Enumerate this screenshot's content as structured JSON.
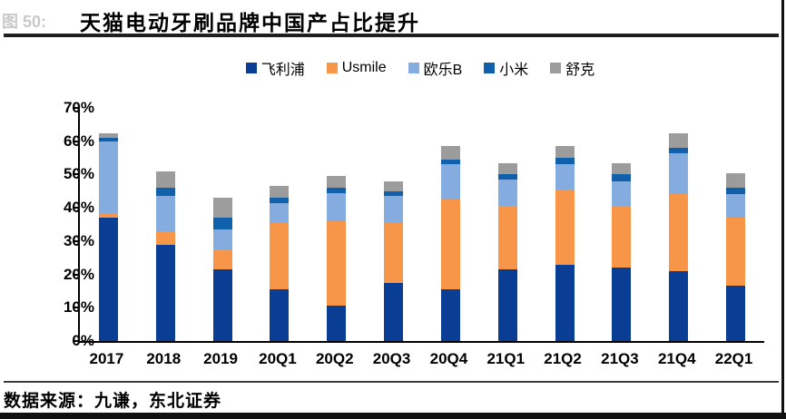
{
  "header": {
    "figure_label": "图 50:",
    "title": "天猫电动牙刷品牌中国产占比提升"
  },
  "footer": {
    "source": "数据来源：九谦，东北证券"
  },
  "chart_data": {
    "type": "bar",
    "stacked": true,
    "title": "天猫电动牙刷品牌中国产占比提升",
    "xlabel": "",
    "ylabel": "",
    "unit": "%",
    "ylim": [
      0,
      70
    ],
    "ytick_step": 10,
    "ytick_labels": [
      "0%",
      "10%",
      "20%",
      "30%",
      "40%",
      "50%",
      "60%",
      "70%"
    ],
    "grid": false,
    "legend_position": "top-center",
    "categories": [
      "2017",
      "2018",
      "2019",
      "20Q1",
      "20Q2",
      "20Q3",
      "20Q4",
      "21Q1",
      "21Q2",
      "21Q3",
      "21Q4",
      "22Q1"
    ],
    "series": [
      {
        "name": "飞利浦",
        "color": "#0a3e94",
        "values": [
          37,
          29,
          21.5,
          15.5,
          10.5,
          17.5,
          15.5,
          21.5,
          23,
          22,
          21,
          16.5
        ]
      },
      {
        "name": "Usmile",
        "color": "#f79648",
        "values": [
          1.5,
          4,
          6,
          20,
          25.5,
          18,
          27,
          19,
          22.5,
          18.5,
          23,
          20.5
        ]
      },
      {
        "name": "欧乐B",
        "color": "#85acdf",
        "values": [
          21.5,
          10.5,
          6,
          6,
          8.5,
          8,
          10.5,
          8,
          7.5,
          7.5,
          12.5,
          7
        ]
      },
      {
        "name": "小米",
        "color": "#1060ac",
        "values": [
          1,
          2.5,
          3.5,
          1.5,
          1.5,
          1.5,
          1.5,
          1.5,
          2,
          2,
          1.5,
          2
        ]
      },
      {
        "name": "舒克",
        "color": "#9c9c9c",
        "values": [
          1.5,
          5,
          6,
          3.5,
          3.5,
          3,
          4,
          3.5,
          3.5,
          3.5,
          4.5,
          4.5
        ]
      }
    ],
    "totals": [
      62.5,
      51,
      43,
      46.5,
      49.5,
      48,
      58.5,
      53.5,
      58.5,
      53.5,
      62.5,
      50.5
    ]
  }
}
